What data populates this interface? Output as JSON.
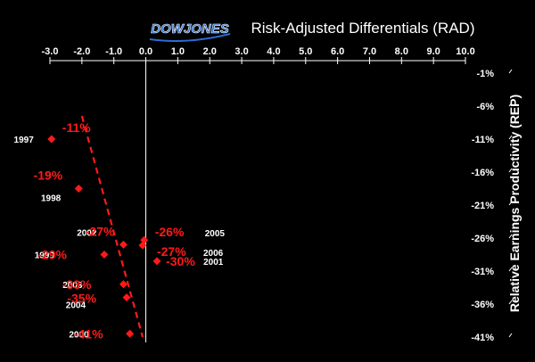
{
  "header": {
    "logo": "DOWJONES",
    "title": "Risk-Adjusted Differentials (RAD)"
  },
  "chart_data": {
    "type": "scatter",
    "title": "Risk-Adjusted Differentials (RAD)",
    "xlabel": "",
    "ylabel": "Relative Earnings Productivity (REP)",
    "xlim": [
      -3.0,
      10.0
    ],
    "ylim": [
      -41,
      -1
    ],
    "x_ticks": [
      "-3.0",
      "-2.0",
      "-1.0",
      "0.0",
      "1.0",
      "2.0",
      "3.0",
      "4.0",
      "5.0",
      "6.0",
      "7.0",
      "8.0",
      "9.0",
      "10.0"
    ],
    "y_ticks": [
      "-1%",
      "-6%",
      "-11%",
      "-16%",
      "-21%",
      "-26%",
      "-31%",
      "-36%",
      "-41%"
    ],
    "grid": false,
    "colors": {
      "marker": "#ff1a1a",
      "value_label": "#ff1a1a",
      "year_label": "#ffffff",
      "axis": "#ffffff",
      "background": "#000000"
    },
    "points": [
      {
        "year": "1997",
        "x": -2.95,
        "y": -11,
        "label": "-11%"
      },
      {
        "year": "1998",
        "x": -2.1,
        "y": -18.5,
        "label": "-19%"
      },
      {
        "year": "2002",
        "x": -0.7,
        "y": -27,
        "label": "-27%"
      },
      {
        "year": "2005",
        "x": -0.05,
        "y": -26.3,
        "label": "-26%"
      },
      {
        "year": "2006",
        "x": -0.1,
        "y": -27.1,
        "label": "-27%"
      },
      {
        "year": "1999",
        "x": -1.3,
        "y": -28.5,
        "label": "-29%"
      },
      {
        "year": "2001",
        "x": 0.35,
        "y": -29.5,
        "label": "-30%"
      },
      {
        "year": "2003",
        "x": -0.7,
        "y": -33,
        "label": "-33%"
      },
      {
        "year": "2004",
        "x": -0.6,
        "y": -35,
        "label": "-35%"
      },
      {
        "year": "2000",
        "x": -0.5,
        "y": -40.5,
        "label": "-41%"
      }
    ],
    "trendline": {
      "style": "dashed",
      "from": {
        "x": -2.0,
        "y": -7.5
      },
      "to": {
        "x": -0.1,
        "y": -41
      }
    }
  }
}
